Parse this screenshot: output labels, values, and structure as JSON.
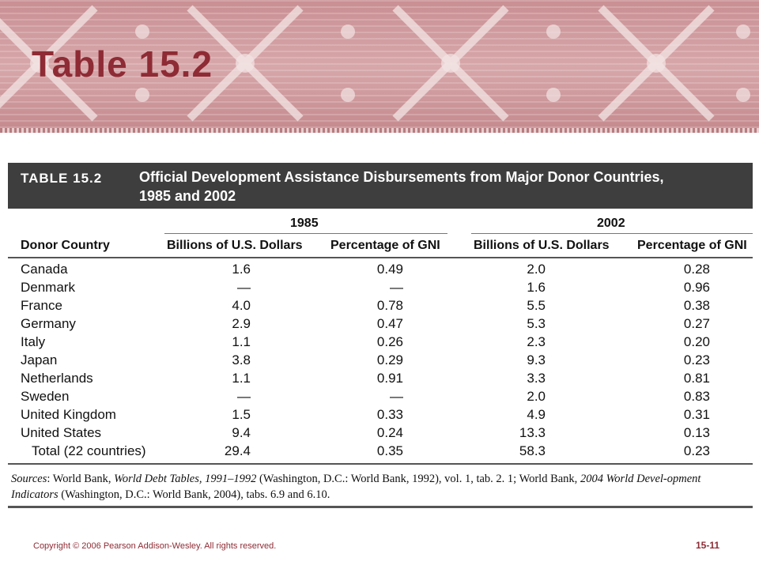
{
  "slide": {
    "title": "Table 15.2",
    "copyright": "Copyright © 2006 Pearson Addison-Wesley. All rights reserved.",
    "page": "15-11"
  },
  "table": {
    "label": "TABLE 15.2",
    "title_line1": "Official Development Assistance Disbursements from Major Donor Countries,",
    "title_line2": "1985 and 2002",
    "year1": "1985",
    "year2": "2002",
    "col_country": "Donor Country",
    "col_billions": "Billions of U.S. Dollars",
    "col_percent": "Percentage of GNI",
    "rows": [
      {
        "country": "Canada",
        "b1985": "1.6",
        "p1985": "0.49",
        "b2002": "2.0",
        "p2002": "0.28"
      },
      {
        "country": "Denmark",
        "b1985": "—",
        "p1985": "—",
        "b2002": "1.6",
        "p2002": "0.96"
      },
      {
        "country": "France",
        "b1985": "4.0",
        "p1985": "0.78",
        "b2002": "5.5",
        "p2002": "0.38"
      },
      {
        "country": "Germany",
        "b1985": "2.9",
        "p1985": "0.47",
        "b2002": "5.3",
        "p2002": "0.27"
      },
      {
        "country": "Italy",
        "b1985": "1.1",
        "p1985": "0.26",
        "b2002": "2.3",
        "p2002": "0.20"
      },
      {
        "country": "Japan",
        "b1985": "3.8",
        "p1985": "0.29",
        "b2002": "9.3",
        "p2002": "0.23"
      },
      {
        "country": "Netherlands",
        "b1985": "1.1",
        "p1985": "0.91",
        "b2002": "3.3",
        "p2002": "0.81"
      },
      {
        "country": "Sweden",
        "b1985": "—",
        "p1985": "—",
        "b2002": "2.0",
        "p2002": "0.83"
      },
      {
        "country": "United Kingdom",
        "b1985": "1.5",
        "p1985": "0.33",
        "b2002": "4.9",
        "p2002": "0.31"
      },
      {
        "country": "United States",
        "b1985": "9.4",
        "p1985": "0.24",
        "b2002": "13.3",
        "p2002": "0.13"
      },
      {
        "country": "Total (22 countries)",
        "b1985": "29.4",
        "p1985": "0.35",
        "b2002": "58.3",
        "p2002": "0.23"
      }
    ],
    "sources": {
      "label": "Sources",
      "part1": ": World Bank, ",
      "ref1": "World Debt Tables, 1991–1992",
      "part2": " (Washington, D.C.: World Bank, 1992), vol. 1, tab. 2. 1; World Bank, ",
      "ref2": "2004 World Devel-opment Indicators",
      "part3": " (Washington, D.C.: World Bank, 2004), tabs. 6.9 and 6.10."
    }
  }
}
